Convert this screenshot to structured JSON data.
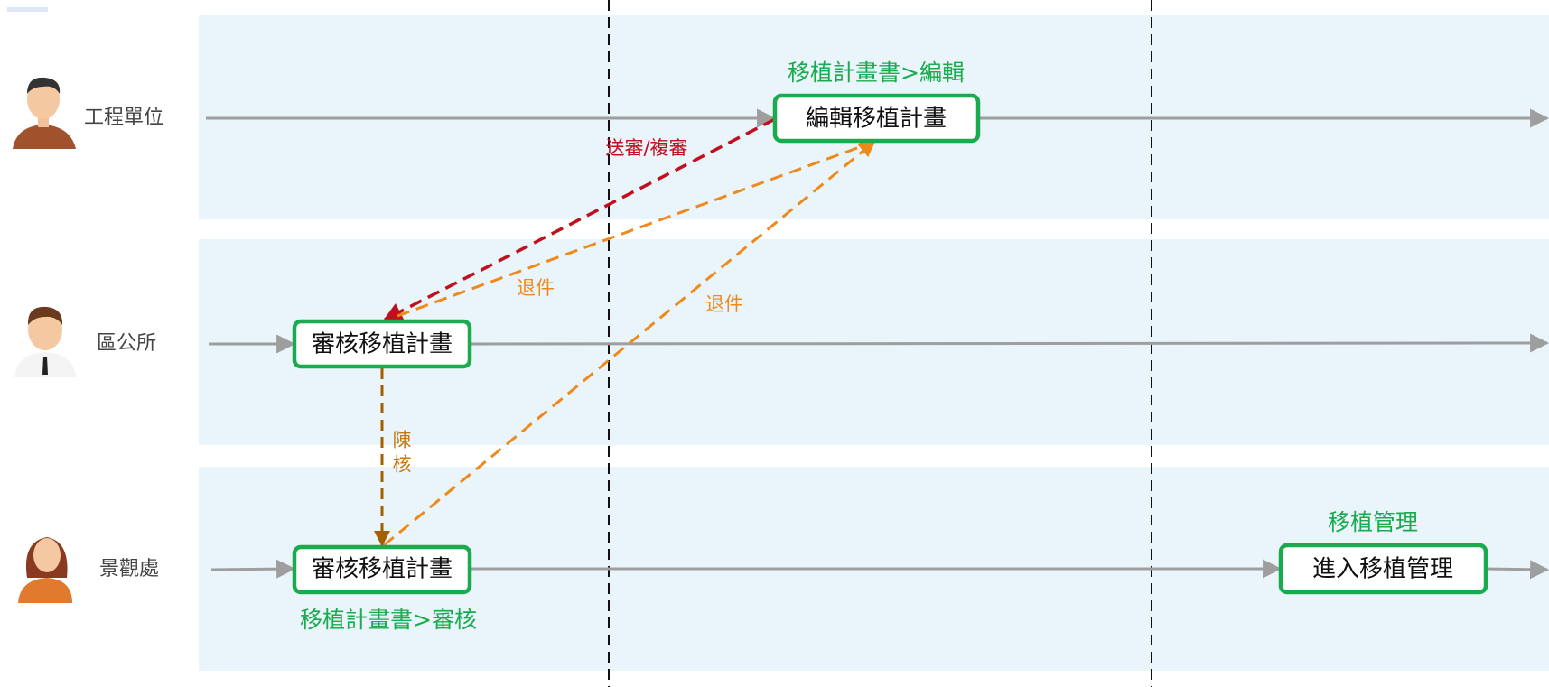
{
  "lanes": [
    {
      "name": "工程單位"
    },
    {
      "name": "區公所"
    },
    {
      "name": "景觀處"
    }
  ],
  "nodes": [
    {
      "label": "編輯移植計畫",
      "caption": "移植計畫書>編輯"
    },
    {
      "label": "審核移植計畫"
    },
    {
      "label": "審核移植計畫",
      "caption": "移植計畫書>審核"
    },
    {
      "label": "進入移植管理",
      "caption": "移植管理"
    }
  ],
  "edges": [
    {
      "label": "送審/複審"
    },
    {
      "label": "退件"
    },
    {
      "label": "退件"
    },
    {
      "label": "陳核"
    }
  ]
}
